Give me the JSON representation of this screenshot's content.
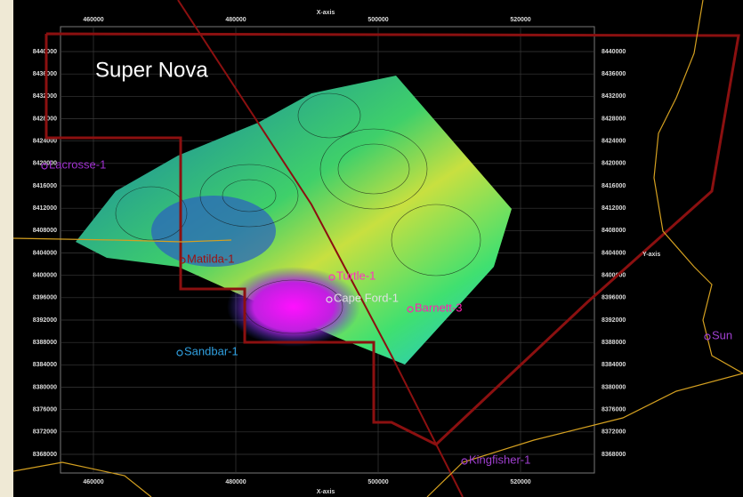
{
  "title": "Super Nova",
  "x_axis": {
    "label": "X-axis",
    "ticks": [
      460000,
      480000,
      500000,
      520000
    ]
  },
  "y_axis": {
    "label": "Y-axis",
    "ticks": [
      8440000,
      8436000,
      8432000,
      8428000,
      8424000,
      8420000,
      8416000,
      8412000,
      8408000,
      8404000,
      8400000,
      8396000,
      8392000,
      8388000,
      8384000,
      8380000,
      8376000,
      8372000,
      8368000
    ]
  },
  "wells": [
    {
      "label": "Lacrosse-1"
    },
    {
      "label": "Matilda-1"
    },
    {
      "label": "Turtle-1"
    },
    {
      "label": "Cape Ford-1"
    },
    {
      "label": "Barnett-3"
    },
    {
      "label": "Sandbar-1"
    },
    {
      "label": "Kingfisher-1"
    },
    {
      "label": "Sun"
    }
  ]
}
